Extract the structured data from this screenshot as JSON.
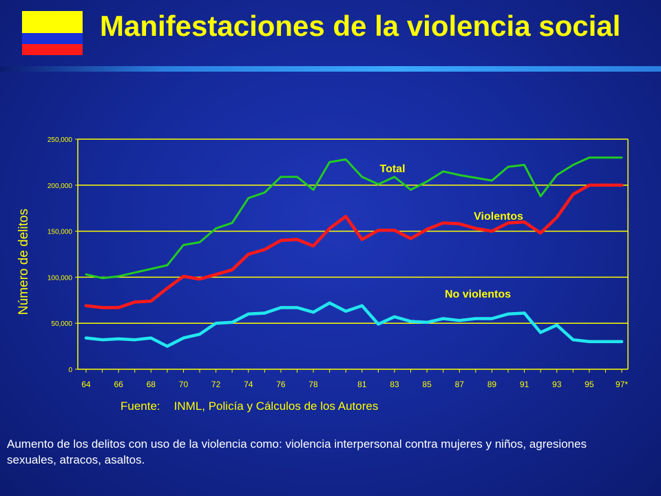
{
  "header": {
    "title": "Manifestaciones de la violencia social",
    "flag_colors": [
      "#ffff00",
      "#1a30d8",
      "#ff1a1a"
    ]
  },
  "chart_data": {
    "type": "line",
    "ylabel": "Número de delitos",
    "ylim": [
      0,
      250000
    ],
    "yticks": [
      "0",
      "50,000",
      "100,000",
      "150,000",
      "200,000",
      "250,000"
    ],
    "x": [
      "64",
      "65",
      "66",
      "67",
      "68",
      "69",
      "70",
      "71",
      "72",
      "73",
      "74",
      "75",
      "76",
      "77",
      "78",
      "79",
      "80",
      "81",
      "82",
      "83",
      "84",
      "85",
      "86",
      "87",
      "88",
      "89",
      "90",
      "91",
      "92",
      "93",
      "94",
      "95",
      "96",
      "97*"
    ],
    "xtick_labels": [
      "64",
      "66",
      "68",
      "70",
      "72",
      "74",
      "76",
      "78",
      "81",
      "83",
      "85",
      "87",
      "89",
      "91",
      "93",
      "95",
      "97*"
    ],
    "grid": true,
    "series": [
      {
        "name": "Total",
        "color": "#22cc22",
        "values": [
          103000,
          99000,
          101000,
          105000,
          109000,
          113000,
          135000,
          138000,
          153000,
          159000,
          186000,
          192000,
          209000,
          209000,
          195000,
          225000,
          228000,
          209000,
          201000,
          209000,
          195000,
          204000,
          215000,
          211000,
          208000,
          205000,
          220000,
          222000,
          188000,
          211000,
          222000,
          230000,
          230000,
          230000
        ]
      },
      {
        "name": "Violentos",
        "color": "#ff1a1a",
        "values": [
          69000,
          67000,
          67000,
          73000,
          74000,
          88000,
          101000,
          98000,
          103000,
          108000,
          125000,
          130000,
          140000,
          141000,
          134000,
          153000,
          166000,
          141000,
          151000,
          151000,
          142000,
          152000,
          159000,
          158000,
          153000,
          150000,
          159000,
          160000,
          148000,
          165000,
          190000,
          200000,
          200000,
          200000
        ]
      },
      {
        "name": "No violentos",
        "color": "#22e6ee",
        "values": [
          34000,
          32000,
          33000,
          32000,
          34000,
          25000,
          34000,
          38000,
          50000,
          51000,
          60000,
          61000,
          67000,
          67000,
          62000,
          72000,
          63000,
          69000,
          49000,
          57000,
          52000,
          51000,
          55000,
          53000,
          55000,
          55000,
          60000,
          61000,
          40000,
          48000,
          32000,
          30000,
          30000,
          30000
        ]
      }
    ],
    "source": {
      "label": "Fuente:",
      "text": "INML, Policía y Cálculos de los Autores"
    }
  },
  "caption": "Aumento de los delitos con uso de la violencia como: violencia interpersonal contra mujeres y niños, agresiones sexuales, atracos, asaltos."
}
